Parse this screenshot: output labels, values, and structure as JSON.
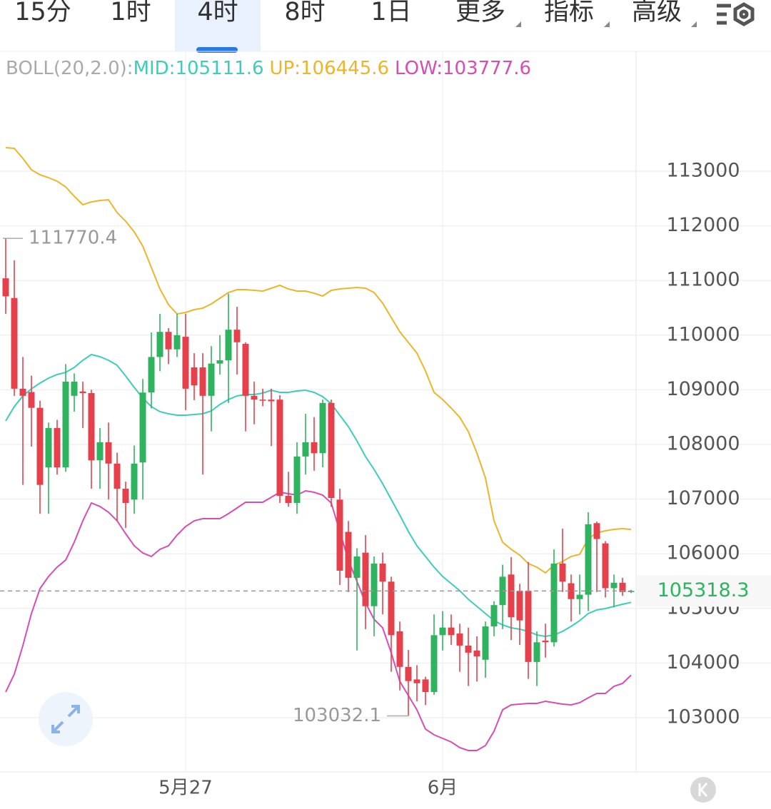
{
  "tabs": [
    "15分",
    "1时",
    "4时",
    "8时",
    "1日",
    "更多",
    "指标",
    "高级"
  ],
  "active_tab_index": 2,
  "chart_data": {
    "type": "candlestick",
    "indicator_label": "BOLL(20,2.0):",
    "categories": [
      null,
      null,
      null,
      null,
      null,
      null,
      null,
      null,
      null,
      null,
      null,
      null,
      null,
      null,
      null,
      null,
      null,
      null,
      null,
      null,
      null,
      "5月27",
      null,
      null,
      null,
      null,
      null,
      null,
      null,
      null,
      null,
      null,
      null,
      null,
      null,
      null,
      null,
      null,
      null,
      null,
      null,
      null,
      null,
      null,
      null,
      null,
      null,
      null,
      null,
      null,
      null,
      "6月",
      null,
      null,
      null,
      null,
      null,
      null,
      null,
      null,
      null,
      null,
      null,
      null,
      null,
      null,
      null,
      null,
      null,
      null,
      null,
      null,
      null,
      null
    ],
    "open": [
      111040,
      110680,
      109020,
      108960,
      108670,
      107580,
      108300,
      107580,
      108890,
      108970,
      108940,
      107710,
      108040,
      107650,
      107190,
      106990,
      107670,
      108950,
      109600,
      110060,
      109740,
      109970,
      109410,
      109410,
      108890,
      109480,
      109540,
      110100,
      109840,
      108890,
      108820,
      108820,
      108820,
      107060,
      106930,
      107780,
      108040,
      107840,
      108760,
      106990,
      106400,
      105560,
      106020,
      105040,
      105820,
      105490,
      104580,
      103930,
      103700,
      103700,
      103470,
      104510,
      104650,
      104540,
      104320,
      104230,
      104060,
      104670,
      105060,
      105620,
      105320,
      105320,
      104020,
      104410,
      104380,
      105820,
      105460,
      105170,
      105250,
      106560,
      106190,
      105370,
      105470,
      105300
    ],
    "high": [
      111770.4,
      111370,
      109600,
      109260,
      108800,
      108400,
      108450,
      109470,
      109300,
      109150,
      109000,
      108300,
      108400,
      107850,
      107320,
      107980,
      109200,
      110050,
      110390,
      110130,
      110390,
      110390,
      109670,
      109670,
      109800,
      110000,
      110760,
      110520,
      109870,
      109150,
      109020,
      109020,
      108900,
      107500,
      108040,
      108560,
      108500,
      108820,
      108820,
      107190,
      106600,
      106100,
      106340,
      105950,
      106020,
      105580,
      104760,
      104240,
      103960,
      103750,
      104890,
      104950,
      104890,
      104720,
      104650,
      104490,
      104760,
      105130,
      105800,
      105940,
      105450,
      105850,
      104580,
      104720,
      106080,
      106460,
      105620,
      105620,
      106760,
      106590,
      106230,
      105620,
      105560,
      105340
    ],
    "low": [
      110390,
      108890,
      107260,
      107960,
      106730,
      106730,
      107450,
      107500,
      108600,
      108300,
      107190,
      107190,
      106990,
      106600,
      106470,
      106730,
      106990,
      108660,
      109340,
      109470,
      109600,
      108630,
      108810,
      107450,
      108240,
      109280,
      108760,
      109280,
      108240,
      108370,
      108700,
      107970,
      106930,
      106860,
      106730,
      107450,
      107520,
      107580,
      106860,
      105430,
      105300,
      104230,
      104620,
      104490,
      104890,
      103840,
      103500,
      103032.1,
      103300,
      103230,
      103420,
      104230,
      104330,
      103840,
      103580,
      103660,
      103730,
      104490,
      104620,
      104420,
      104330,
      103710,
      103580,
      104100,
      104300,
      105300,
      104760,
      104890,
      104950,
      105300,
      105200,
      105020,
      105230,
      105280
    ],
    "close": [
      110710,
      109020,
      108890,
      108670,
      107260,
      108300,
      107580,
      109150,
      109150,
      108940,
      107710,
      108040,
      107650,
      107190,
      106930,
      107650,
      108950,
      109600,
      110060,
      109740,
      110000,
      109020,
      109080,
      108890,
      109480,
      109540,
      110100,
      109870,
      108890,
      108820,
      108800,
      108790,
      107060,
      106930,
      107780,
      108040,
      107840,
      108760,
      107020,
      105690,
      105560,
      105950,
      105040,
      105820,
      105490,
      104510,
      103930,
      103670,
      103630,
      103470,
      104510,
      104650,
      104510,
      104320,
      104190,
      104120,
      104670,
      105060,
      105580,
      104840,
      104780,
      104020,
      104380,
      104380,
      105820,
      105490,
      105170,
      105250,
      106540,
      106270,
      105370,
      105470,
      105300,
      105318.3
    ],
    "up_color": "#2fb35f",
    "down_color": "#e5414d",
    "series": [
      {
        "name": "MID:105111.6",
        "color": "#3ccdbb",
        "values": [
          108431,
          108692,
          108888,
          109018,
          109123,
          109214,
          109279,
          109318,
          109410,
          109540,
          109645,
          109606,
          109540,
          109449,
          109253,
          109044,
          108848,
          108692,
          108600,
          108561,
          108535,
          108535,
          108548,
          108561,
          108613,
          108731,
          108822,
          108888,
          108914,
          108914,
          108940,
          108992,
          108953,
          108953,
          108979,
          108992,
          108953,
          108875,
          108744,
          108535,
          108326,
          108065,
          107778,
          107543,
          107282,
          106995,
          106708,
          106407,
          106146,
          105950,
          105754,
          105585,
          105454,
          105324,
          105167,
          105037,
          104906,
          104775,
          104697,
          104645,
          104619,
          104580,
          104514,
          104488,
          104514,
          104580,
          104671,
          104775,
          104906,
          104971,
          104997,
          105037,
          105076,
          105111.6
        ]
      },
      {
        "name": "UP:106445.6",
        "color": "#ebb62a",
        "values": [
          113431,
          113418,
          113235,
          113026,
          112935,
          112883,
          112817,
          112713,
          112543,
          112386,
          112439,
          112465,
          112478,
          112243,
          112086,
          111890,
          111629,
          111238,
          110846,
          110559,
          110389,
          110415,
          110467,
          110493,
          110572,
          110676,
          110781,
          110833,
          110833,
          110820,
          110807,
          110859,
          110911,
          110846,
          110807,
          110807,
          110768,
          110715,
          110820,
          110846,
          110859,
          110872,
          110859,
          110781,
          110585,
          110324,
          110063,
          109867,
          109671,
          109345,
          108953,
          108822,
          108666,
          108496,
          108235,
          107843,
          107386,
          106603,
          106211,
          106081,
          105976,
          105820,
          105754,
          105650,
          105793,
          105859,
          105950,
          105989,
          106276,
          106381,
          106420,
          106446,
          106459,
          106445.6
        ]
      },
      {
        "name": "LOW:103777.6",
        "color": "#d64db4",
        "values": [
          103470,
          103796,
          104318,
          104906,
          105363,
          105585,
          105754,
          105885,
          106211,
          106603,
          106930,
          106865,
          106760,
          106603,
          106368,
          106146,
          106015,
          105950,
          106081,
          106146,
          106342,
          106499,
          106603,
          106642,
          106642,
          106642,
          106734,
          106838,
          106943,
          106943,
          106943,
          107034,
          107125,
          107099,
          107073,
          107151,
          107125,
          107073,
          106930,
          106407,
          105885,
          105493,
          105102,
          104801,
          104645,
          104188,
          103666,
          103405,
          103144,
          102791,
          102687,
          102622,
          102556,
          102452,
          102399,
          102399,
          102491,
          102752,
          103144,
          103235,
          103248,
          103261,
          103261,
          103300,
          103274,
          103248,
          103235,
          103274,
          103365,
          103444,
          103444,
          103575,
          103627,
          103777.6
        ]
      }
    ],
    "annotations": [
      {
        "value": 111770.4,
        "label": "111770.4"
      },
      {
        "value": 103032.1,
        "label": "103032.1"
      }
    ],
    "current_price": {
      "value": 105318.3,
      "label": "105318.3"
    },
    "ylim": [
      102008,
      115193
    ],
    "yticks": [
      103000,
      104000,
      105000,
      106000,
      107000,
      108000,
      109000,
      110000,
      111000,
      112000,
      113000
    ],
    "grid": true
  }
}
